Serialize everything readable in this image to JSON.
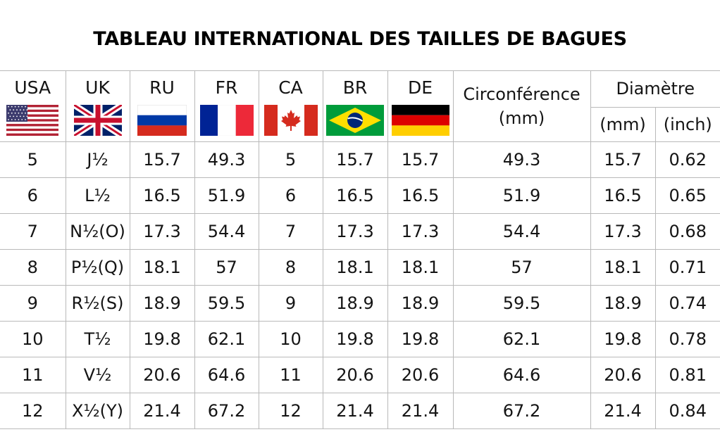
{
  "title": "TABLEAU INTERNATIONAL DES TAILLES DE BAGUES",
  "columns": {
    "usa": "USA",
    "uk": "UK",
    "ru": "RU",
    "fr": "FR",
    "ca": "CA",
    "br": "BR",
    "de": "DE",
    "circumference_label": "Circonférence",
    "circumference_unit": "(mm)",
    "diameter_label": "Diamètre",
    "diameter_mm": "(mm)",
    "diameter_inch": "(inch)"
  },
  "flags": {
    "usa": "us-flag-icon",
    "uk": "uk-flag-icon",
    "ru": "ru-flag-icon",
    "fr": "fr-flag-icon",
    "ca": "ca-flag-icon",
    "br": "br-flag-icon",
    "de": "de-flag-icon"
  },
  "rows": [
    {
      "usa": "5",
      "uk": "J½",
      "ru": "15.7",
      "fr": "49.3",
      "ca": "5",
      "br": "15.7",
      "de": "15.7",
      "circ": "49.3",
      "dmm": "15.7",
      "dinch": "0.62"
    },
    {
      "usa": "6",
      "uk": "L½",
      "ru": "16.5",
      "fr": "51.9",
      "ca": "6",
      "br": "16.5",
      "de": "16.5",
      "circ": "51.9",
      "dmm": "16.5",
      "dinch": "0.65"
    },
    {
      "usa": "7",
      "uk": "N½(O)",
      "ru": "17.3",
      "fr": "54.4",
      "ca": "7",
      "br": "17.3",
      "de": "17.3",
      "circ": "54.4",
      "dmm": "17.3",
      "dinch": "0.68"
    },
    {
      "usa": "8",
      "uk": "P½(Q)",
      "ru": "18.1",
      "fr": "57",
      "ca": "8",
      "br": "18.1",
      "de": "18.1",
      "circ": "57",
      "dmm": "18.1",
      "dinch": "0.71"
    },
    {
      "usa": "9",
      "uk": "R½(S)",
      "ru": "18.9",
      "fr": "59.5",
      "ca": "9",
      "br": "18.9",
      "de": "18.9",
      "circ": "59.5",
      "dmm": "18.9",
      "dinch": "0.74"
    },
    {
      "usa": "10",
      "uk": "T½",
      "ru": "19.8",
      "fr": "62.1",
      "ca": "10",
      "br": "19.8",
      "de": "19.8",
      "circ": "62.1",
      "dmm": "19.8",
      "dinch": "0.78"
    },
    {
      "usa": "11",
      "uk": "V½",
      "ru": "20.6",
      "fr": "64.6",
      "ca": "11",
      "br": "20.6",
      "de": "20.6",
      "circ": "64.6",
      "dmm": "20.6",
      "dinch": "0.81"
    },
    {
      "usa": "12",
      "uk": "X½(Y)",
      "ru": "21.4",
      "fr": "67.2",
      "ca": "12",
      "br": "21.4",
      "de": "21.4",
      "circ": "67.2",
      "dmm": "21.4",
      "dinch": "0.84"
    }
  ]
}
